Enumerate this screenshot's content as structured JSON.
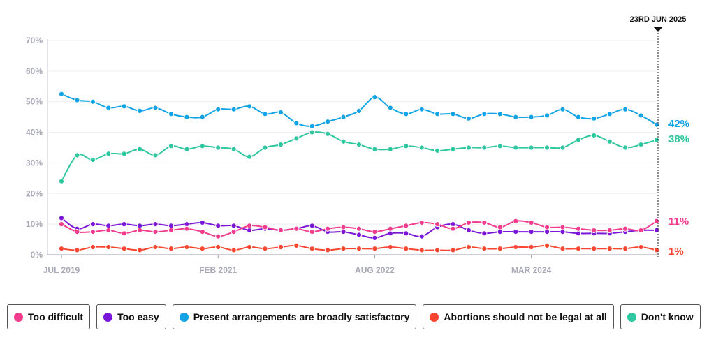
{
  "chart_data": {
    "type": "line",
    "title": "",
    "xlabel": "",
    "ylabel": "",
    "ylim": [
      0,
      70
    ],
    "yticks": [
      "0%",
      "10%",
      "20%",
      "30%",
      "40%",
      "50%",
      "60%",
      "70%"
    ],
    "xticks": [
      {
        "label": "JUL 2019",
        "index": 0
      },
      {
        "label": "FEB 2021",
        "index": 10
      },
      {
        "label": "AUG 2022",
        "index": 20
      },
      {
        "label": "MAR 2024",
        "index": 30
      }
    ],
    "date_marker": "23RD JUN 2025",
    "n_points": 39,
    "series": [
      {
        "name": "Present arrangements are broadly satisfactory",
        "color": "#12a3e6",
        "end_label": "42%",
        "values": [
          52.5,
          50.5,
          50,
          48,
          48.5,
          47,
          48,
          46,
          45,
          45,
          47.5,
          47.5,
          48.5,
          46,
          46.5,
          43,
          42,
          43.5,
          45,
          47,
          51.5,
          48,
          46,
          47.5,
          46,
          46,
          44.5,
          46,
          46,
          45,
          45,
          45.5,
          47.5,
          45,
          44.5,
          46,
          47.5,
          45.5,
          42.5
        ]
      },
      {
        "name": "Don't know",
        "color": "#2ec79f",
        "end_label": "38%",
        "values": [
          24,
          32.5,
          31,
          33,
          33,
          34.5,
          32.5,
          35.5,
          34.5,
          35.5,
          35,
          34.5,
          32,
          35,
          36,
          38,
          40,
          39.5,
          37,
          36,
          34.5,
          34.5,
          35.5,
          35,
          34,
          34.5,
          35,
          35,
          35.5,
          35,
          35,
          35,
          35,
          37.5,
          39,
          37,
          35,
          36,
          37.5
        ]
      },
      {
        "name": "Too easy",
        "color": "#7a16d8",
        "end_label": "",
        "values": [
          12,
          8.5,
          10,
          9.5,
          10,
          9.5,
          10,
          9.5,
          10,
          10.5,
          9.5,
          9.5,
          8,
          8.5,
          8,
          8.5,
          9.5,
          7.5,
          7.5,
          6.5,
          5.5,
          7,
          7,
          6,
          9,
          10,
          8,
          7,
          7.5,
          7.5,
          7.5,
          7.5,
          7.5,
          7,
          7,
          7,
          7.5,
          8,
          8
        ]
      },
      {
        "name": "Too difficult",
        "color": "#f23c8e",
        "end_label": "11%",
        "values": [
          10,
          7.5,
          7.5,
          8,
          7,
          8,
          7.5,
          8,
          8.5,
          7.5,
          6,
          7.5,
          9.5,
          9,
          8,
          8.5,
          7.5,
          8.5,
          9,
          8.5,
          7.5,
          8.5,
          9.5,
          10.5,
          10,
          8.5,
          10.5,
          10.5,
          9,
          11,
          10.5,
          9,
          9,
          8.5,
          8,
          8,
          8.5,
          8,
          11
        ]
      },
      {
        "name": "Abortions should not be legal at all",
        "color": "#f7452f",
        "end_label": "1%",
        "values": [
          2,
          1.5,
          2.5,
          2.5,
          2,
          1.5,
          2.5,
          2,
          2.5,
          2,
          2.5,
          1.5,
          2.5,
          2,
          2.5,
          3,
          2,
          1.5,
          2,
          2,
          2,
          2.5,
          2,
          1.5,
          1.5,
          1.5,
          2.5,
          2,
          2,
          2.5,
          2.5,
          3,
          2,
          2,
          2,
          2,
          2,
          2.5,
          1.5
        ]
      }
    ]
  },
  "legend": [
    {
      "label": "Too difficult",
      "color": "#f23c8e"
    },
    {
      "label": "Too easy",
      "color": "#7a16d8"
    },
    {
      "label": "Present arrangements are broadly satisfactory",
      "color": "#12a3e6"
    },
    {
      "label": "Abortions should not be legal at all",
      "color": "#f7452f"
    },
    {
      "label": "Don't know",
      "color": "#2ec79f"
    }
  ]
}
